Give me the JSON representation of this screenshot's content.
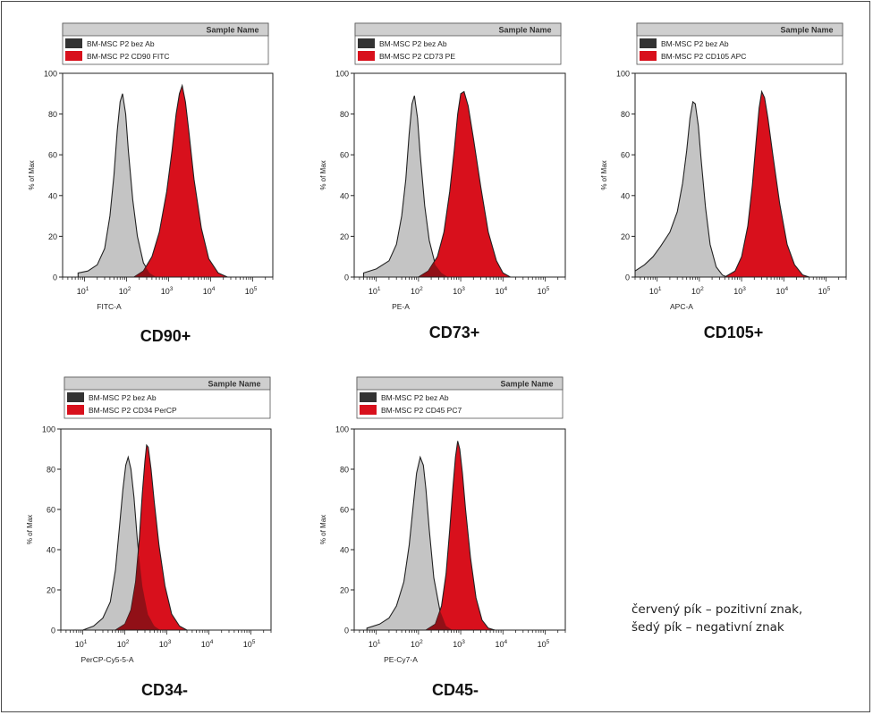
{
  "colors": {
    "negative_fill": "#c4c4c4",
    "positive_fill": "#d8101c",
    "overlap_fill": "#851016",
    "legend_header_bg": "#cfcfcf",
    "legend_negative_swatch": "#333333",
    "outline": "#222222"
  },
  "note": {
    "line1": "červený pík – pozitivní znak,",
    "line2": "šedý pík – negativní znak"
  },
  "chart_data": [
    {
      "type": "area",
      "title": "CD90+",
      "xlabel": "FITC-A",
      "ylabel": "% of Max",
      "x_scale": "log",
      "xlim": [
        3,
        300000
      ],
      "ylim": [
        0,
        100
      ],
      "y_ticks": [
        0,
        20,
        40,
        60,
        80,
        100
      ],
      "x_ticks": [
        "10^1",
        "10^2",
        "10^3",
        "10^4",
        "10^5"
      ],
      "legend_title": "Sample Name",
      "series": [
        {
          "name": "BM-MSC P2 bez Ab",
          "role": "negative",
          "x": [
            7,
            12,
            20,
            30,
            40,
            50,
            60,
            70,
            80,
            95,
            110,
            140,
            180,
            250,
            350,
            500
          ],
          "values": [
            2,
            3,
            6,
            14,
            30,
            50,
            72,
            86,
            90,
            80,
            62,
            38,
            20,
            7,
            2,
            0
          ]
        },
        {
          "name": "BM-MSC P2 CD90 FITC",
          "role": "positive",
          "x": [
            150,
            250,
            400,
            600,
            900,
            1200,
            1500,
            1800,
            2100,
            2500,
            3000,
            4000,
            6000,
            9000,
            15000,
            25000
          ],
          "values": [
            0,
            3,
            10,
            22,
            42,
            62,
            80,
            90,
            94,
            86,
            72,
            48,
            24,
            9,
            2,
            0
          ]
        }
      ]
    },
    {
      "type": "area",
      "title": "CD73+",
      "xlabel": "PE-A",
      "ylabel": "% of Max",
      "x_scale": "log",
      "xlim": [
        3,
        300000
      ],
      "ylim": [
        0,
        100
      ],
      "y_ticks": [
        0,
        20,
        40,
        60,
        80,
        100
      ],
      "x_ticks": [
        "10^1",
        "10^2",
        "10^3",
        "10^4",
        "10^5"
      ],
      "legend_title": "Sample Name",
      "series": [
        {
          "name": "BM-MSC P2 bez Ab",
          "role": "negative",
          "x": [
            5,
            10,
            20,
            30,
            40,
            50,
            60,
            70,
            80,
            95,
            110,
            140,
            180,
            250,
            350,
            500
          ],
          "values": [
            2,
            4,
            8,
            16,
            30,
            48,
            70,
            85,
            89,
            78,
            60,
            35,
            18,
            6,
            2,
            0
          ]
        },
        {
          "name": "BM-MSC P2 CD73 PE",
          "role": "positive",
          "x": [
            100,
            170,
            280,
            400,
            550,
            700,
            850,
            1000,
            1200,
            1500,
            2000,
            3000,
            4500,
            7000,
            10000,
            15000
          ],
          "values": [
            0,
            3,
            10,
            22,
            42,
            62,
            80,
            90,
            91,
            84,
            68,
            44,
            22,
            8,
            2,
            0
          ]
        }
      ]
    },
    {
      "type": "area",
      "title": "CD105+",
      "xlabel": "APC-A",
      "ylabel": "% of Max",
      "x_scale": "log",
      "xlim": [
        3,
        300000
      ],
      "ylim": [
        0,
        100
      ],
      "y_ticks": [
        0,
        20,
        40,
        60,
        80,
        100
      ],
      "x_ticks": [
        "10^1",
        "10^2",
        "10^3",
        "10^4",
        "10^5"
      ],
      "legend_title": "Sample Name",
      "series": [
        {
          "name": "BM-MSC P2 bez Ab",
          "role": "negative",
          "x": [
            3,
            5,
            8,
            12,
            20,
            30,
            40,
            50,
            60,
            70,
            80,
            95,
            110,
            140,
            180,
            250,
            350,
            450
          ],
          "values": [
            3,
            6,
            10,
            15,
            22,
            32,
            46,
            62,
            78,
            86,
            85,
            74,
            58,
            34,
            16,
            5,
            1,
            0
          ]
        },
        {
          "name": "BM-MSC P2 CD105 APC",
          "role": "positive",
          "x": [
            400,
            700,
            1000,
            1400,
            1800,
            2200,
            2600,
            3000,
            3500,
            4200,
            5500,
            8000,
            12000,
            18000,
            28000,
            40000
          ],
          "values": [
            0,
            3,
            10,
            25,
            45,
            66,
            83,
            91,
            88,
            78,
            60,
            36,
            16,
            6,
            1,
            0
          ]
        }
      ]
    },
    {
      "type": "area",
      "title": "CD34-",
      "xlabel": "PerCP-Cy5-5-A",
      "ylabel": "% of Max",
      "x_scale": "log",
      "xlim": [
        3,
        300000
      ],
      "ylim": [
        0,
        100
      ],
      "y_ticks": [
        0,
        20,
        40,
        60,
        80,
        100
      ],
      "x_ticks": [
        "10^1",
        "10^2",
        "10^3",
        "10^4",
        "10^5"
      ],
      "legend_title": "Sample Name",
      "series": [
        {
          "name": "BM-MSC P2 bez Ab",
          "role": "negative",
          "x": [
            10,
            18,
            30,
            45,
            60,
            75,
            90,
            105,
            120,
            140,
            165,
            200,
            260,
            350,
            500,
            700
          ],
          "values": [
            0,
            2,
            6,
            14,
            30,
            52,
            70,
            82,
            86,
            80,
            66,
            44,
            22,
            8,
            2,
            0
          ]
        },
        {
          "name": "BM-MSC P2 CD34 PerCP",
          "role": "positive",
          "x": [
            60,
            100,
            140,
            180,
            220,
            260,
            300,
            330,
            360,
            420,
            500,
            650,
            900,
            1300,
            2000,
            3000
          ],
          "values": [
            0,
            3,
            10,
            24,
            45,
            68,
            84,
            92,
            91,
            80,
            64,
            42,
            22,
            8,
            2,
            0
          ]
        }
      ]
    },
    {
      "type": "area",
      "title": "CD45-",
      "xlabel": "PE-Cy7-A",
      "ylabel": "% of Max",
      "x_scale": "log",
      "xlim": [
        3,
        300000
      ],
      "ylim": [
        0,
        100
      ],
      "y_ticks": [
        0,
        20,
        40,
        60,
        80,
        100
      ],
      "x_ticks": [
        "10^1",
        "10^2",
        "10^3",
        "10^4",
        "10^5"
      ],
      "legend_title": "Sample Name",
      "series": [
        {
          "name": "BM-MSC P2 bez Ab",
          "role": "negative",
          "x": [
            6,
            12,
            20,
            30,
            45,
            60,
            75,
            90,
            110,
            130,
            150,
            180,
            230,
            320,
            450,
            650
          ],
          "values": [
            1,
            3,
            6,
            12,
            24,
            42,
            62,
            78,
            86,
            82,
            70,
            50,
            26,
            10,
            2,
            0
          ]
        },
        {
          "name": "BM-MSC P2 CD45 PC7",
          "role": "positive",
          "x": [
            150,
            250,
            350,
            450,
            550,
            650,
            750,
            850,
            950,
            1100,
            1300,
            1700,
            2300,
            3200,
            4500,
            6500
          ],
          "values": [
            0,
            3,
            12,
            28,
            50,
            70,
            86,
            94,
            90,
            78,
            60,
            36,
            16,
            5,
            1,
            0
          ]
        }
      ]
    }
  ]
}
